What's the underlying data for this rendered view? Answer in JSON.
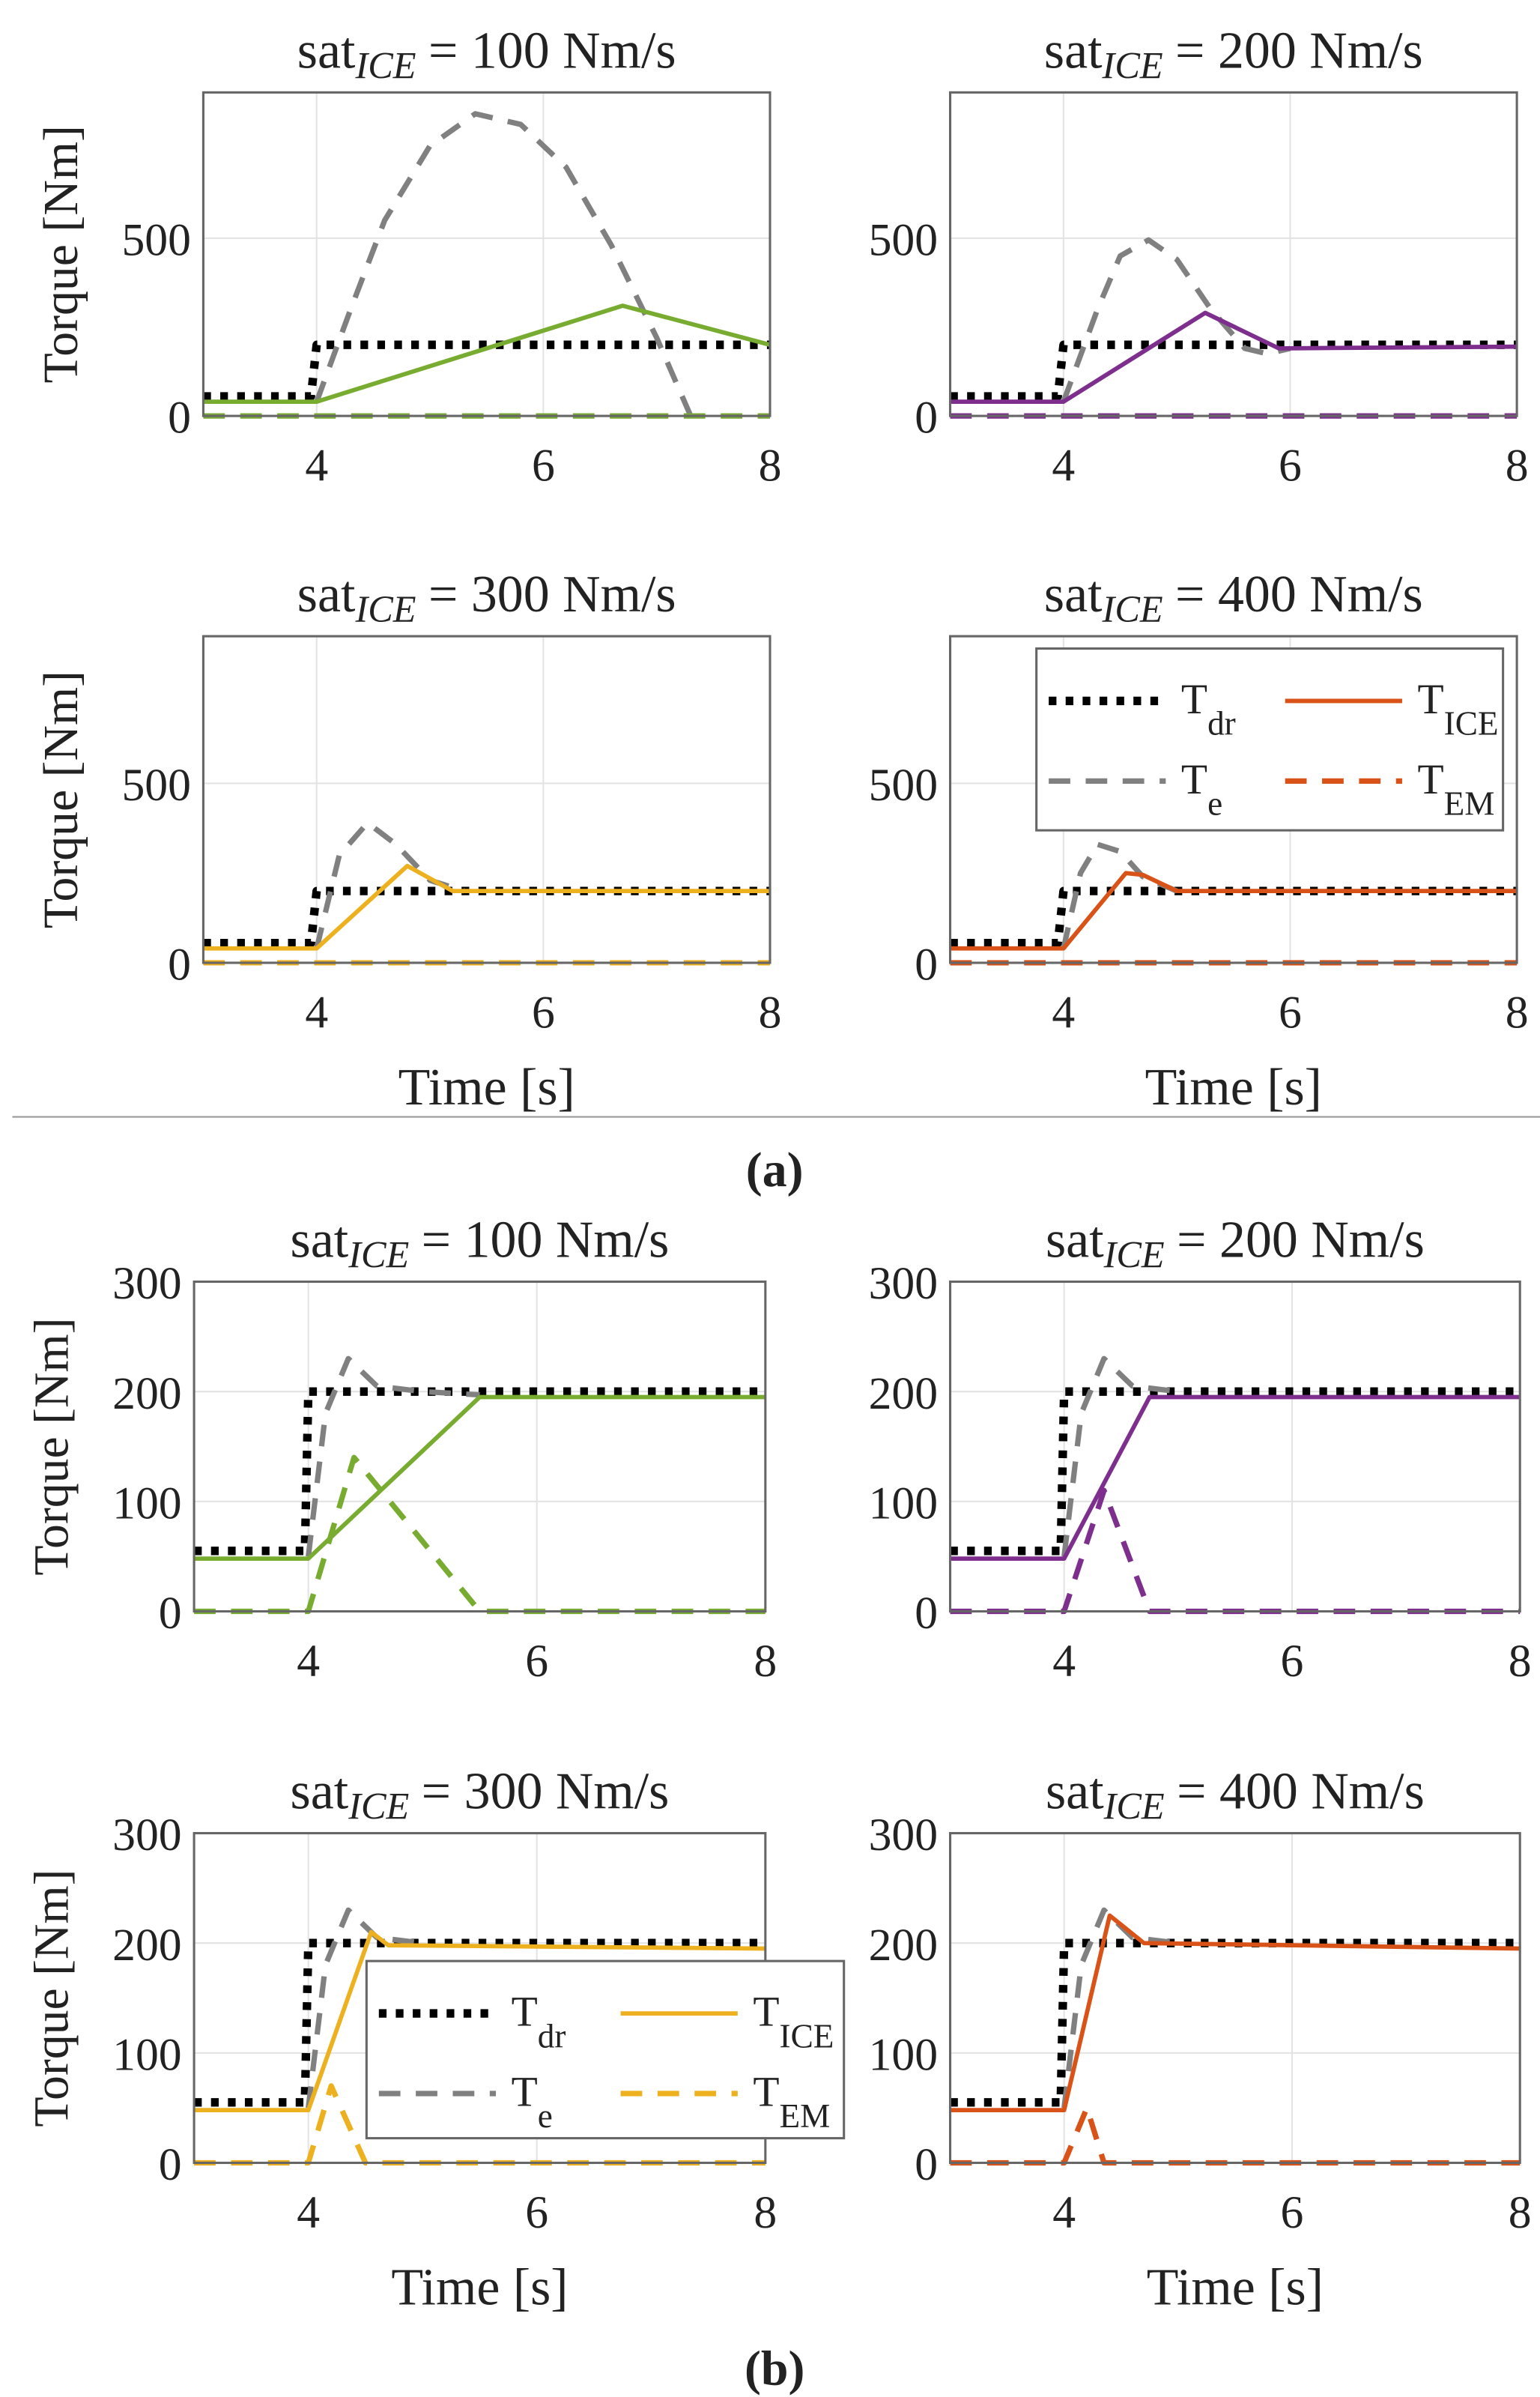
{
  "colors": {
    "dr": "#000000",
    "e": "#808080",
    "green": "#77ac30",
    "purple": "#7e2f8e",
    "yellow": "#edb120",
    "orange": "#d95319"
  },
  "captions": {
    "a": "(a)",
    "b": "(b)"
  },
  "legend": {
    "dr_main": "T",
    "dr_sub": "dr",
    "ice_main": "T",
    "ice_sub": "ICE",
    "e_main": "T",
    "e_sub": "e",
    "em_main": "T",
    "em_sub": "EM"
  },
  "chart_data": [
    {
      "type": "line",
      "group": "a",
      "title_main": "sat",
      "title_sub": "ICE",
      "title_rest": "= 100 Nm/s",
      "color": "green",
      "ylabel": "Torque [Nm]",
      "xlabel": "",
      "xlim": [
        3,
        8
      ],
      "ylim": [
        0,
        910
      ],
      "xticks": [
        4,
        6,
        8
      ],
      "yticks": [
        0,
        500
      ],
      "grid": true,
      "legend": null,
      "series": [
        {
          "name": "T_dr",
          "style": "dotted",
          "x": [
            3,
            3.95,
            4,
            8
          ],
          "y": [
            55,
            55,
            200,
            200
          ]
        },
        {
          "name": "T_e",
          "style": "dashed",
          "x": [
            4,
            4.3,
            4.6,
            5,
            5.4,
            5.8,
            6.2,
            6.6,
            7,
            7.3
          ],
          "y": [
            40,
            300,
            550,
            760,
            850,
            820,
            700,
            480,
            220,
            0
          ]
        },
        {
          "name": "T_ICE",
          "style": "solid",
          "x": [
            3,
            4,
            6.7,
            8
          ],
          "y": [
            40,
            40,
            310,
            200
          ]
        },
        {
          "name": "T_EM",
          "style": "dashed",
          "x": [
            3,
            8
          ],
          "y": [
            0,
            0
          ]
        }
      ]
    },
    {
      "type": "line",
      "group": "a",
      "title_main": "sat",
      "title_sub": "ICE",
      "title_rest": "= 200 Nm/s",
      "color": "purple",
      "ylabel": "",
      "xlabel": "",
      "xlim": [
        3,
        8
      ],
      "ylim": [
        0,
        910
      ],
      "xticks": [
        4,
        6,
        8
      ],
      "yticks": [
        0,
        500
      ],
      "grid": true,
      "legend": null,
      "series": [
        {
          "name": "T_dr",
          "style": "dotted",
          "x": [
            3,
            3.95,
            4,
            8
          ],
          "y": [
            55,
            55,
            200,
            200
          ]
        },
        {
          "name": "T_e",
          "style": "dashed",
          "x": [
            4,
            4.3,
            4.5,
            4.75,
            5,
            5.3,
            5.6,
            5.8,
            6
          ],
          "y": [
            40,
            300,
            450,
            495,
            440,
            300,
            190,
            175,
            190
          ]
        },
        {
          "name": "T_ICE",
          "style": "solid",
          "x": [
            3,
            4,
            5.25,
            5.9,
            8
          ],
          "y": [
            40,
            40,
            290,
            190,
            195
          ]
        },
        {
          "name": "T_EM",
          "style": "dashed",
          "x": [
            3,
            8
          ],
          "y": [
            0,
            0
          ]
        }
      ]
    },
    {
      "type": "line",
      "group": "a",
      "title_main": "sat",
      "title_sub": "ICE",
      "title_rest": "= 300 Nm/s",
      "color": "yellow",
      "ylabel": "Torque [Nm]",
      "xlabel": "Time [s]",
      "xlim": [
        3,
        8
      ],
      "ylim": [
        0,
        910
      ],
      "xticks": [
        4,
        6,
        8
      ],
      "yticks": [
        0,
        500
      ],
      "grid": true,
      "legend": null,
      "series": [
        {
          "name": "T_dr",
          "style": "dotted",
          "x": [
            3,
            3.95,
            4,
            8
          ],
          "y": [
            55,
            55,
            200,
            200
          ]
        },
        {
          "name": "T_e",
          "style": "dashed",
          "x": [
            4,
            4.2,
            4.45,
            4.7,
            5,
            5.3
          ],
          "y": [
            40,
            300,
            390,
            330,
            230,
            200
          ]
        },
        {
          "name": "T_ICE",
          "style": "solid",
          "x": [
            3,
            4,
            4.8,
            5.2,
            8
          ],
          "y": [
            40,
            40,
            270,
            200,
            200
          ]
        },
        {
          "name": "T_EM",
          "style": "dashed",
          "x": [
            3,
            8
          ],
          "y": [
            0,
            0
          ]
        }
      ]
    },
    {
      "type": "line",
      "group": "a",
      "title_main": "sat",
      "title_sub": "ICE",
      "title_rest": "= 400 Nm/s",
      "color": "orange",
      "ylabel": "",
      "xlabel": "Time [s]",
      "xlim": [
        3,
        8
      ],
      "ylim": [
        0,
        910
      ],
      "xticks": [
        4,
        6,
        8
      ],
      "yticks": [
        0,
        500
      ],
      "grid": true,
      "legend": "top-right",
      "series": [
        {
          "name": "T_dr",
          "style": "dotted",
          "x": [
            3,
            3.95,
            4,
            8
          ],
          "y": [
            55,
            55,
            200,
            200
          ]
        },
        {
          "name": "T_e",
          "style": "dashed",
          "x": [
            4,
            4.15,
            4.3,
            4.5,
            4.7,
            5
          ],
          "y": [
            40,
            250,
            330,
            310,
            240,
            200
          ]
        },
        {
          "name": "T_ICE",
          "style": "solid",
          "x": [
            3,
            4,
            4.55,
            4.7,
            5,
            8
          ],
          "y": [
            40,
            40,
            250,
            245,
            200,
            200
          ]
        },
        {
          "name": "T_EM",
          "style": "dashed",
          "x": [
            3,
            8
          ],
          "y": [
            0,
            0
          ]
        }
      ]
    },
    {
      "type": "line",
      "group": "b",
      "title_main": "sat",
      "title_sub": "ICE",
      "title_rest": "= 100 Nm/s",
      "color": "green",
      "ylabel": "Torque [Nm]",
      "xlabel": "",
      "xlim": [
        3,
        8
      ],
      "ylim": [
        0,
        300
      ],
      "xticks": [
        4,
        6,
        8
      ],
      "yticks": [
        0,
        100,
        200,
        300
      ],
      "grid": true,
      "legend": null,
      "series": [
        {
          "name": "T_dr",
          "style": "dotted",
          "x": [
            3,
            3.97,
            4,
            8
          ],
          "y": [
            55,
            55,
            200,
            200
          ]
        },
        {
          "name": "T_e",
          "style": "dashed",
          "x": [
            4,
            4.15,
            4.35,
            4.6,
            5,
            5.5
          ],
          "y": [
            50,
            180,
            230,
            205,
            200,
            197
          ]
        },
        {
          "name": "T_ICE",
          "style": "solid",
          "x": [
            3,
            4,
            5.5,
            8
          ],
          "y": [
            48,
            48,
            195,
            195
          ]
        },
        {
          "name": "T_EM",
          "style": "dashed",
          "x": [
            3,
            4,
            4.4,
            5.5,
            8
          ],
          "y": [
            0,
            0,
            140,
            0,
            0
          ]
        }
      ]
    },
    {
      "type": "line",
      "group": "b",
      "title_main": "sat",
      "title_sub": "ICE",
      "title_rest": "= 200 Nm/s",
      "color": "purple",
      "ylabel": "",
      "xlabel": "",
      "xlim": [
        3,
        8
      ],
      "ylim": [
        0,
        300
      ],
      "xticks": [
        4,
        6,
        8
      ],
      "yticks": [
        0,
        100,
        200,
        300
      ],
      "grid": true,
      "legend": null,
      "series": [
        {
          "name": "T_dr",
          "style": "dotted",
          "x": [
            3,
            3.97,
            4,
            8
          ],
          "y": [
            55,
            55,
            200,
            200
          ]
        },
        {
          "name": "T_e",
          "style": "dashed",
          "x": [
            4,
            4.15,
            4.35,
            4.6,
            5
          ],
          "y": [
            50,
            180,
            230,
            205,
            200
          ]
        },
        {
          "name": "T_ICE",
          "style": "solid",
          "x": [
            3,
            4,
            4.75,
            8
          ],
          "y": [
            48,
            48,
            195,
            195
          ]
        },
        {
          "name": "T_EM",
          "style": "dashed",
          "x": [
            3,
            4,
            4.35,
            4.75,
            8
          ],
          "y": [
            0,
            0,
            110,
            0,
            0
          ]
        }
      ]
    },
    {
      "type": "line",
      "group": "b",
      "title_main": "sat",
      "title_sub": "ICE",
      "title_rest": "= 300 Nm/s",
      "color": "yellow",
      "ylabel": "Torque [Nm]",
      "xlabel": "Time [s]",
      "xlim": [
        3,
        8
      ],
      "ylim": [
        0,
        300
      ],
      "xticks": [
        4,
        6,
        8
      ],
      "yticks": [
        0,
        100,
        200,
        300
      ],
      "grid": true,
      "legend": "center",
      "series": [
        {
          "name": "T_dr",
          "style": "dotted",
          "x": [
            3,
            3.97,
            4,
            8
          ],
          "y": [
            55,
            55,
            200,
            200
          ]
        },
        {
          "name": "T_e",
          "style": "dashed",
          "x": [
            4,
            4.15,
            4.35,
            4.6,
            5
          ],
          "y": [
            50,
            180,
            230,
            205,
            200
          ]
        },
        {
          "name": "T_ICE",
          "style": "solid",
          "x": [
            3,
            4,
            4.55,
            4.7,
            8
          ],
          "y": [
            48,
            48,
            210,
            198,
            195
          ]
        },
        {
          "name": "T_EM",
          "style": "dashed",
          "x": [
            3,
            4,
            4.2,
            4.5,
            8
          ],
          "y": [
            0,
            0,
            70,
            0,
            0
          ]
        }
      ]
    },
    {
      "type": "line",
      "group": "b",
      "title_main": "sat",
      "title_sub": "ICE",
      "title_rest": "= 400 Nm/s",
      "color": "orange",
      "ylabel": "",
      "xlabel": "Time [s]",
      "xlim": [
        3,
        8
      ],
      "ylim": [
        0,
        300
      ],
      "xticks": [
        4,
        6,
        8
      ],
      "yticks": [
        0,
        100,
        200,
        300
      ],
      "grid": true,
      "legend": null,
      "series": [
        {
          "name": "T_dr",
          "style": "dotted",
          "x": [
            3,
            3.97,
            4,
            8
          ],
          "y": [
            55,
            55,
            200,
            200
          ]
        },
        {
          "name": "T_e",
          "style": "dashed",
          "x": [
            4,
            4.15,
            4.35,
            4.6,
            5
          ],
          "y": [
            50,
            180,
            230,
            205,
            200
          ]
        },
        {
          "name": "T_ICE",
          "style": "solid",
          "x": [
            3,
            4,
            4.4,
            4.7,
            8
          ],
          "y": [
            48,
            48,
            225,
            200,
            195
          ]
        },
        {
          "name": "T_EM",
          "style": "dashed",
          "x": [
            3,
            4,
            4.2,
            4.35,
            8
          ],
          "y": [
            0,
            0,
            50,
            0,
            0
          ]
        }
      ]
    }
  ]
}
